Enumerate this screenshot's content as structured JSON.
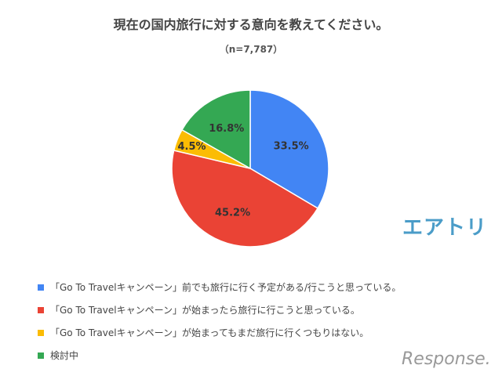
{
  "chart_data": {
    "type": "pie",
    "title": "現在の国内旅行に対する意向を教えてください。",
    "subtitle": "（n=7,787）",
    "slices": [
      {
        "label": "「Go To Travelキャンペーン」前でも旅行に行く予定がある/行こうと思っている。",
        "value": 33.5,
        "data_label": "33.5%",
        "color": "#4285f4"
      },
      {
        "label": "「Go To Travelキャンペーン」が始まったら旅行に行こうと思っている。",
        "value": 45.2,
        "data_label": "45.2%",
        "color": "#ea4335"
      },
      {
        "label": "「Go To Travelキャンペーン」が始まってもまだ旅行に行くつもりはない。",
        "value": 4.5,
        "data_label": "4.5%",
        "color": "#fbbc04"
      },
      {
        "label": "検討中",
        "value": 16.8,
        "data_label": "16.8%",
        "color": "#34a853"
      }
    ],
    "legend_position": "bottom-left"
  },
  "brand": {
    "logo": "エアトリ",
    "watermark": "Response."
  }
}
